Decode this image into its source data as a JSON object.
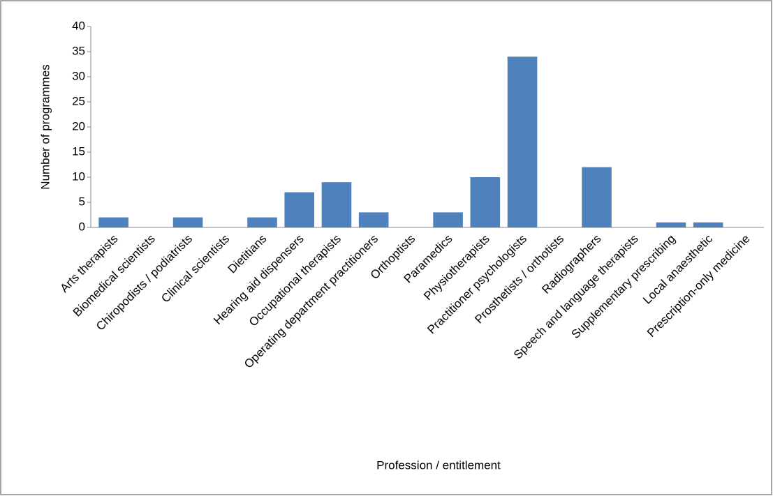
{
  "chart_data": {
    "type": "bar",
    "x_label": "Profession / entitlement",
    "y_label": "Number of programmes",
    "categories": [
      "Arts therapists",
      "Biomedical scientists",
      "Chiropodists / podiatrists",
      "Clinical scientists",
      "Dietitians",
      "Hearing aid dispensers",
      "Occupational therapists",
      "Operating department practitioners",
      "Orthoptists",
      "Paramedics",
      "Physiotherapists",
      "Practitioner psychologists",
      "Prosthetists / orthotists",
      "Radiographers",
      "Speech and language therapists",
      "Supplementary prescribing",
      "Local anaesthetic",
      "Prescription-only medicine"
    ],
    "values": [
      2,
      0,
      2,
      0,
      2,
      7,
      9,
      3,
      0,
      3,
      10,
      34,
      0,
      12,
      0,
      1,
      1,
      0
    ],
    "color": "#4f81bd",
    "ylim": [
      0,
      40
    ],
    "yticks": [
      0,
      5,
      10,
      15,
      20,
      25,
      30,
      35,
      40
    ],
    "grid": false
  }
}
